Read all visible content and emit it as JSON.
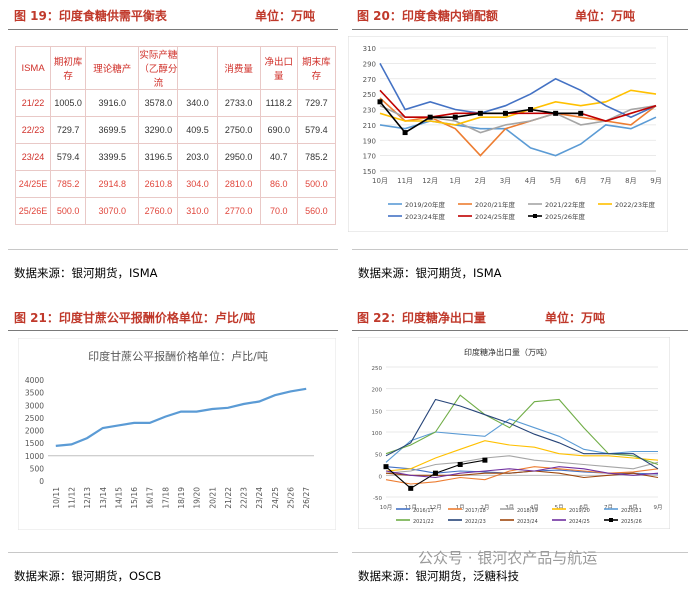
{
  "panels": {
    "p19": {
      "title": "图 19：印度食糖供需平衡表",
      "unit": "单位：万吨",
      "source": "数据来源：银河期货，ISMA"
    },
    "p20": {
      "title": "图 20：印度食糖内销配额",
      "unit": "单位：万吨",
      "source": "数据来源：银河期货，ISMA"
    },
    "p21": {
      "title": "图 21：印度甘蔗公平报酬价格单位：卢比/吨",
      "unit": "",
      "source": "数据来源：银河期货，OSCB"
    },
    "p22": {
      "title": "图 22：印度糖净出口量",
      "unit": "单位：万吨",
      "source": "数据来源：银河期货，泛糖科技"
    }
  },
  "watermark": "公众号 · 银河农产品与航运",
  "balance_table": {
    "headers": [
      "ISMA",
      "期初库存",
      "理论糖产",
      "实际产糖（乙醇分流",
      "",
      "消费量",
      "净出口量",
      "期末库存"
    ],
    "rows": [
      {
        "cells": [
          "21/22",
          "1005.0",
          "3916.0",
          "3578.0",
          "340.0",
          "2733.0",
          "1118.2",
          "729.7"
        ],
        "hl": false
      },
      {
        "cells": [
          "22/23",
          "729.7",
          "3699.5",
          "3290.0",
          "409.5",
          "2750.0",
          "690.0",
          "579.4"
        ],
        "hl": false
      },
      {
        "cells": [
          "23/24",
          "579.4",
          "3399.5",
          "3196.5",
          "203.0",
          "2950.0",
          "40.7",
          "785.2"
        ],
        "hl": false
      },
      {
        "cells": [
          "24/25E",
          "785.2",
          "2914.8",
          "2610.8",
          "304.0",
          "2810.0",
          "86.0",
          "500.0"
        ],
        "hl": true
      },
      {
        "cells": [
          "25/26E",
          "500.0",
          "3070.0",
          "2760.0",
          "310.0",
          "2770.0",
          "70.0",
          "560.0"
        ],
        "hl": true
      }
    ]
  },
  "chart_data": [
    {
      "type": "line",
      "title": "",
      "x": [
        "10月",
        "11月",
        "12月",
        "1月",
        "2月",
        "3月",
        "4月",
        "5月",
        "6月",
        "7月",
        "8月",
        "9月"
      ],
      "ylim": [
        150,
        310
      ],
      "yticks": [
        150,
        170,
        190,
        210,
        230,
        250,
        270,
        290,
        310
      ],
      "grid": true,
      "legend": "bottom",
      "series": [
        {
          "name": "2019/20年度",
          "color": "#5b9bd5",
          "values": [
            210,
            205,
            215,
            210,
            205,
            205,
            180,
            170,
            185,
            210,
            205,
            220
          ]
        },
        {
          "name": "2020/21年度",
          "color": "#ed7d31",
          "values": [
            245,
            215,
            220,
            205,
            170,
            205,
            215,
            225,
            220,
            215,
            210,
            235
          ]
        },
        {
          "name": "2021/22年度",
          "color": "#a5a5a5",
          "values": [
            235,
            220,
            220,
            215,
            200,
            210,
            215,
            225,
            210,
            215,
            230,
            235
          ]
        },
        {
          "name": "2022/23年度",
          "color": "#ffc000",
          "values": [
            225,
            215,
            215,
            210,
            220,
            220,
            230,
            240,
            235,
            240,
            255,
            250
          ]
        },
        {
          "name": "2023/24年度",
          "color": "#4472c4",
          "values": [
            290,
            230,
            240,
            230,
            225,
            235,
            250,
            270,
            255,
            235,
            220,
            235
          ]
        },
        {
          "name": "2024/25年度",
          "color": "#c00000",
          "values": [
            255,
            220,
            220,
            225,
            225,
            225,
            225,
            225,
            225,
            215,
            225,
            235
          ]
        },
        {
          "name": "2025/26年度",
          "color": "#000000",
          "values": [
            240,
            200,
            220,
            220,
            225,
            225,
            230,
            225,
            225,
            null,
            null,
            null
          ]
        }
      ]
    },
    {
      "type": "line",
      "title": "印度甘蔗公平报酬价格单位：卢比/吨",
      "x": [
        "10/11",
        "11/12",
        "12/13",
        "13/14",
        "14/15",
        "15/16",
        "16/17",
        "17/18",
        "18/19",
        "19/20",
        "20/21",
        "21/22",
        "22/23",
        "23/24",
        "24/25",
        "25/26",
        "26/27"
      ],
      "ylim": [
        0,
        4000
      ],
      "yticks": [
        0,
        500,
        1000,
        1500,
        2000,
        2500,
        3000,
        3500,
        4000
      ],
      "grid": false,
      "series": [
        {
          "name": "",
          "color": "#5b9bd5",
          "values": [
            1390,
            1450,
            1700,
            2100,
            2200,
            2300,
            2300,
            2550,
            2750,
            2750,
            2850,
            2900,
            3050,
            3150,
            3400,
            3550,
            3650
          ]
        }
      ]
    },
    {
      "type": "line",
      "title": "印度糖净出口量（万吨）",
      "x": [
        "10月",
        "11月",
        "12月",
        "1月",
        "2月",
        "3月",
        "4月",
        "5月",
        "6月",
        "7月",
        "8月",
        "9月"
      ],
      "ylim": [
        -50,
        250
      ],
      "yticks": [
        -50,
        0,
        50,
        100,
        150,
        200,
        250
      ],
      "grid": true,
      "legend": "bottom",
      "series": [
        {
          "name": "2016/17",
          "color": "#4472c4",
          "values": [
            20,
            15,
            5,
            10,
            8,
            5,
            10,
            12,
            8,
            5,
            5,
            3
          ]
        },
        {
          "name": "2017/18",
          "color": "#ed7d31",
          "values": [
            -10,
            -20,
            -15,
            -5,
            -10,
            10,
            20,
            15,
            10,
            5,
            8,
            15
          ]
        },
        {
          "name": "2018/19",
          "color": "#a5a5a5",
          "values": [
            5,
            10,
            25,
            30,
            40,
            45,
            35,
            30,
            25,
            20,
            15,
            30
          ]
        },
        {
          "name": "2019/20",
          "color": "#ffc000",
          "values": [
            10,
            15,
            40,
            60,
            80,
            70,
            65,
            50,
            45,
            45,
            40,
            35
          ]
        },
        {
          "name": "2020/21",
          "color": "#5b9bd5",
          "values": [
            30,
            80,
            100,
            95,
            90,
            130,
            110,
            90,
            60,
            50,
            55,
            55
          ]
        },
        {
          "name": "2021/22",
          "color": "#70ad47",
          "values": [
            50,
            70,
            100,
            185,
            140,
            110,
            170,
            175,
            110,
            50,
            45,
            25
          ]
        },
        {
          "name": "2022/23",
          "color": "#264478",
          "values": [
            45,
            75,
            175,
            160,
            140,
            120,
            95,
            75,
            50,
            50,
            50,
            15
          ]
        },
        {
          "name": "2023/24",
          "color": "#9e480e",
          "values": [
            5,
            0,
            0,
            0,
            5,
            5,
            10,
            5,
            -5,
            0,
            5,
            -5
          ]
        },
        {
          "name": "2024/25",
          "color": "#7030a0",
          "values": [
            10,
            0,
            -5,
            5,
            10,
            15,
            10,
            20,
            15,
            5,
            0,
            5
          ]
        },
        {
          "name": "2025/26",
          "color": "#000000",
          "values": [
            20,
            -30,
            5,
            25,
            35,
            null,
            null,
            null,
            null,
            null,
            null,
            null
          ]
        }
      ]
    }
  ]
}
